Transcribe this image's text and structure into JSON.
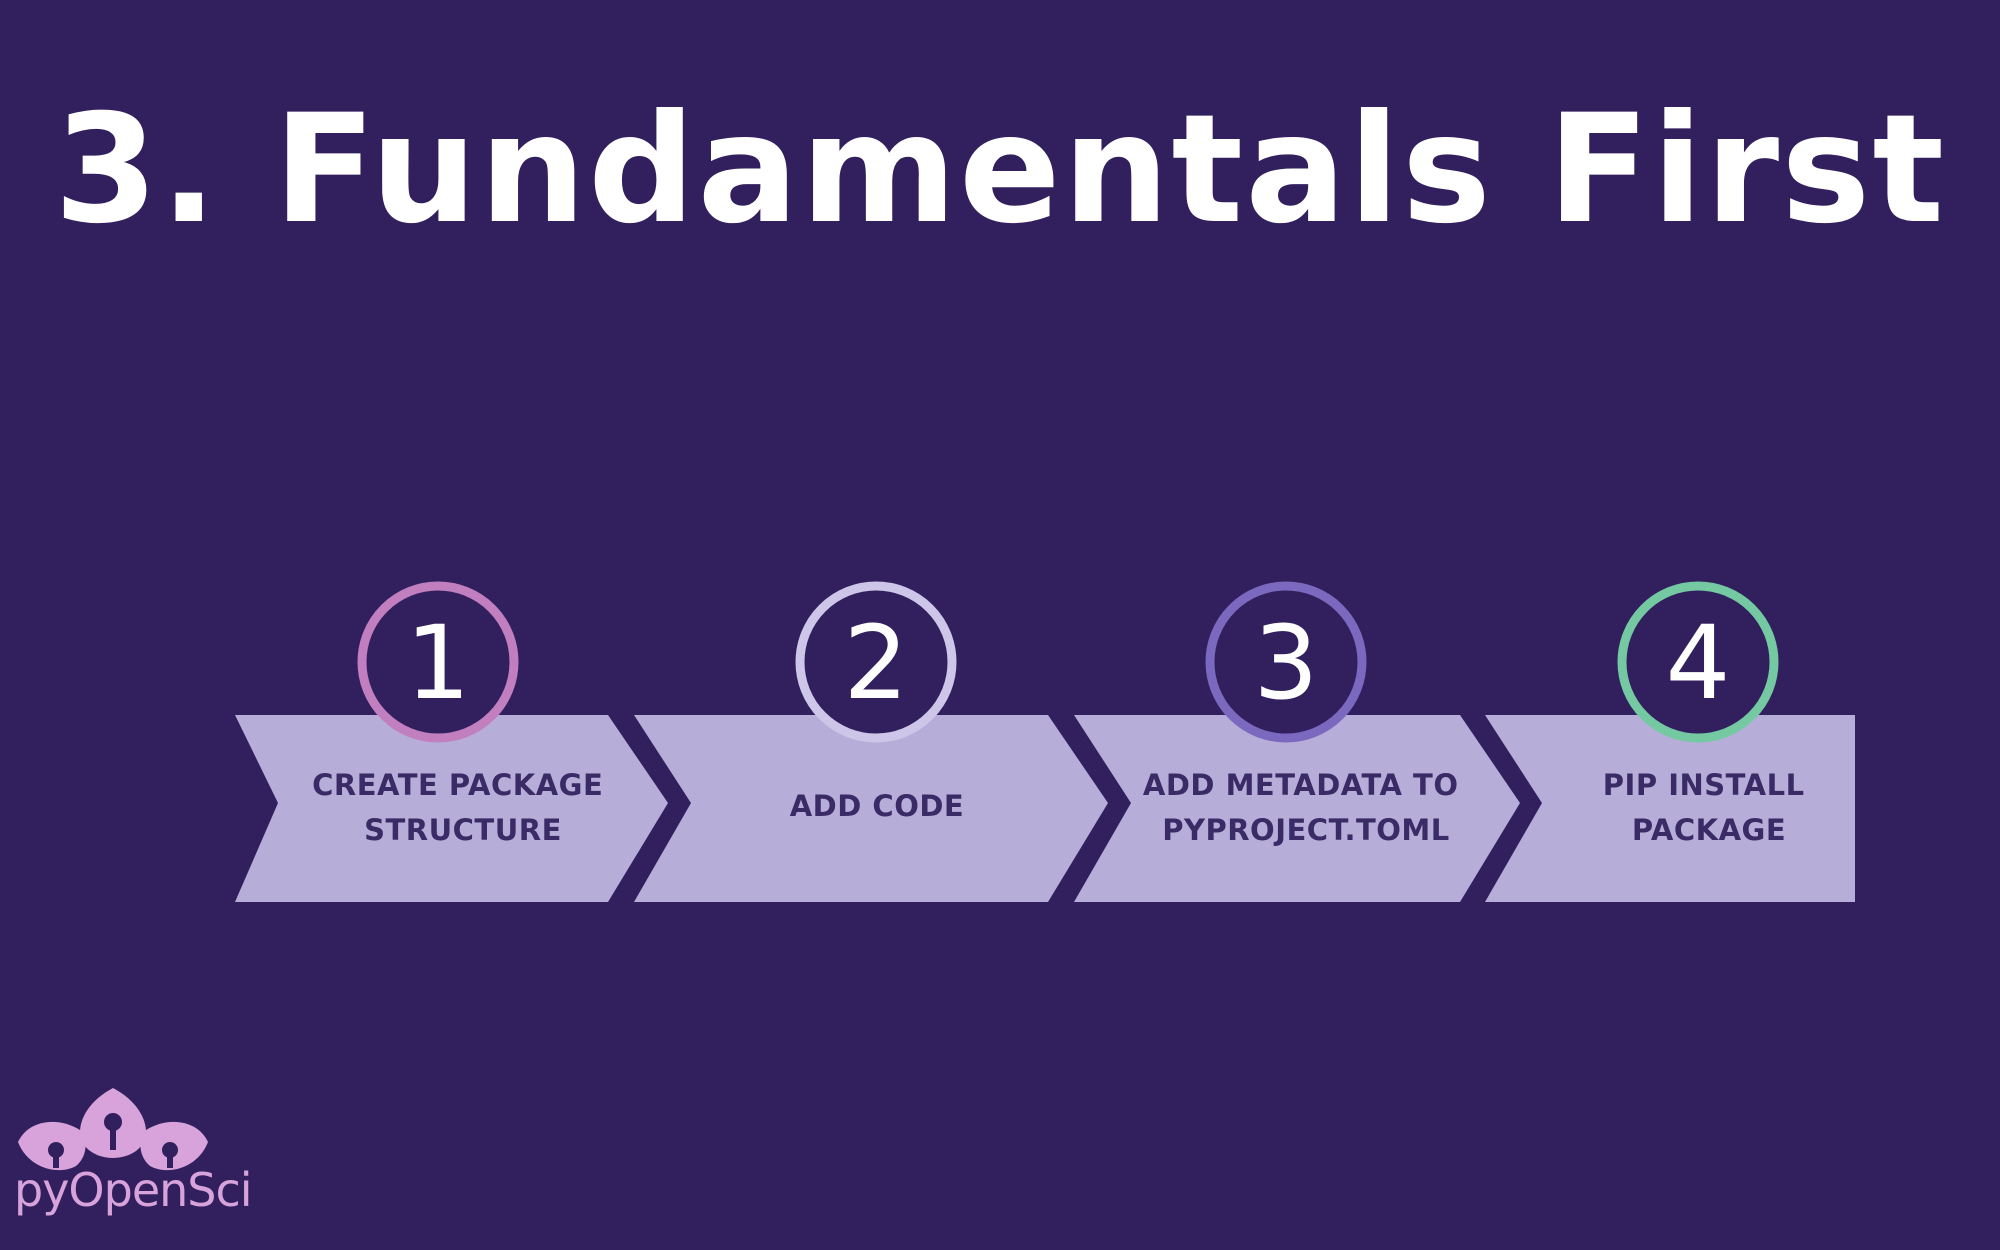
{
  "title": "3. Fundamentals First",
  "steps": [
    {
      "number": "1",
      "lines": [
        "CREATE PACKAGE",
        "STRUCTURE"
      ],
      "ring_color": "#c27fc0"
    },
    {
      "number": "2",
      "lines": [
        "ADD CODE"
      ],
      "ring_color": "#cdc6e8"
    },
    {
      "number": "3",
      "lines": [
        "ADD METADATA TO",
        "PYPROJECT.TOML"
      ],
      "ring_color": "#7b68bf"
    },
    {
      "number": "4",
      "lines": [
        "PIP INSTALL",
        "PACKAGE"
      ],
      "ring_color": "#74c9a2"
    }
  ],
  "logo": {
    "text": "pyOpenSci",
    "icon": "lotus-flower-icon"
  },
  "colors": {
    "background": "#32205e",
    "arrow_fill": "#b6aed8",
    "label_text": "#3a2b66",
    "logo": "#d7a3da"
  }
}
